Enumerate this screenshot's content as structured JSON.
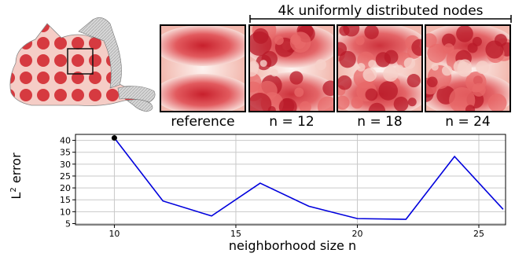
{
  "header": {
    "text": "4k uniformly distributed nodes"
  },
  "panels": [
    {
      "label": "reference",
      "noise": 0
    },
    {
      "label": "n = 12",
      "noise": 1
    },
    {
      "label": "n = 18",
      "noise": 0.8
    },
    {
      "label": "n = 24",
      "noise": 1.1
    }
  ],
  "colors": {
    "accent": "#d8242f",
    "line": "#0000dd",
    "marker": "#000000"
  },
  "chart_data": {
    "type": "line",
    "xlabel": "neighborhood size n",
    "ylabel_main": "L",
    "ylabel_sup": "2",
    "ylabel_rest": " error",
    "xlim": [
      8.4,
      26.1
    ],
    "ylim": [
      4.5,
      42.5
    ],
    "xticks": [
      10,
      15,
      20,
      25
    ],
    "yticks": [
      5,
      10,
      15,
      20,
      25,
      30,
      35,
      40
    ],
    "grid": true,
    "series": [
      {
        "x": [
          10,
          12,
          14,
          16,
          18,
          20,
          22,
          24,
          26
        ],
        "y": [
          41,
          14.5,
          8.2,
          22,
          12.3,
          7.1,
          6.8,
          33.2,
          11
        ]
      }
    ],
    "highlight_point": {
      "x": 10,
      "y": 41
    }
  }
}
